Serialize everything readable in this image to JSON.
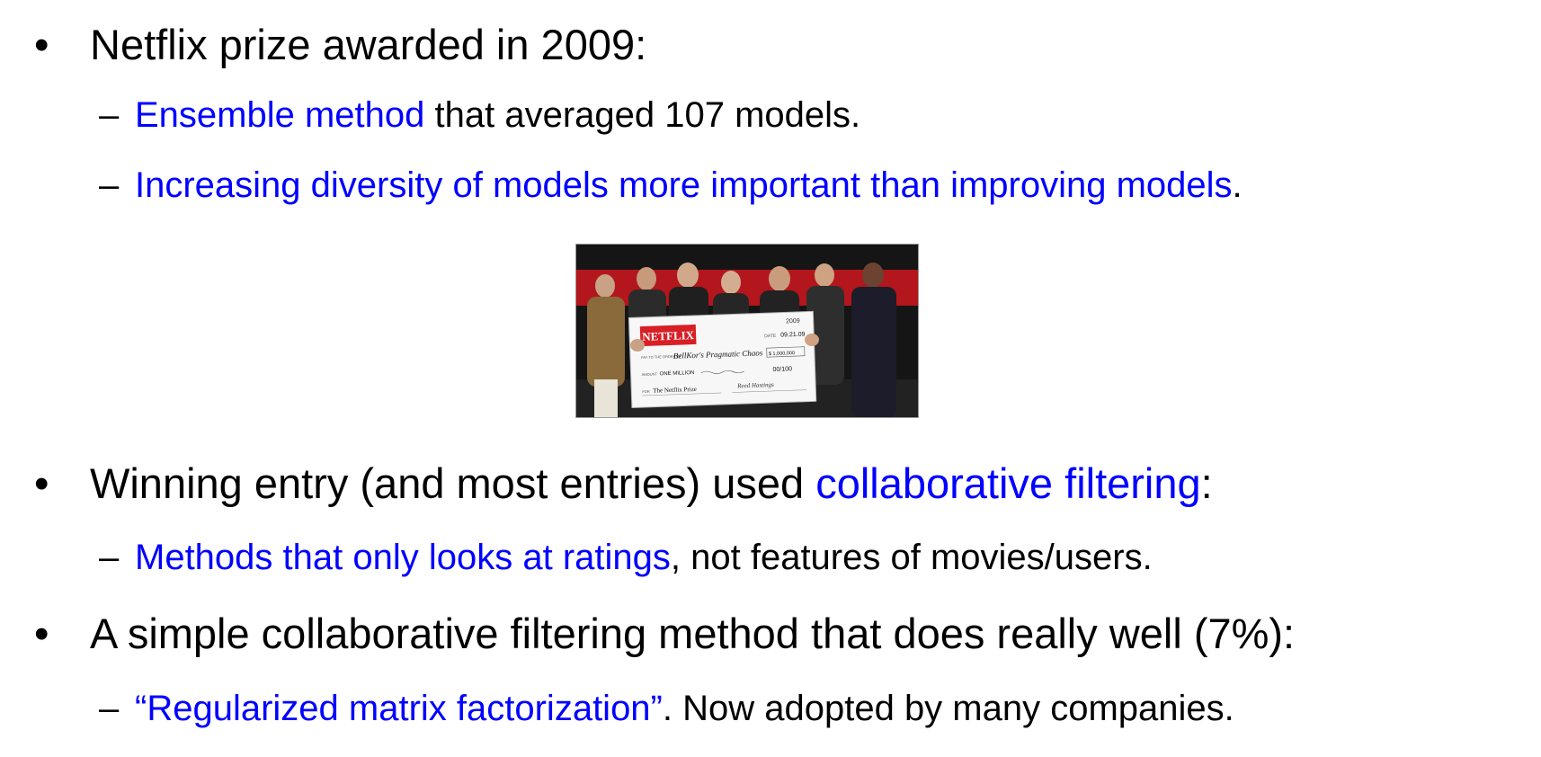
{
  "bullets": [
    {
      "text": "Netflix prize awarded in 2009:",
      "subs": [
        {
          "parts": [
            {
              "t": "Ensemble method",
              "blue": true
            },
            {
              "t": " that averaged 107 models.",
              "blue": false
            }
          ]
        },
        {
          "parts": [
            {
              "t": "Increasing diversity of models more important than improving models",
              "blue": true
            },
            {
              "t": ".",
              "blue": false
            }
          ]
        }
      ]
    },
    {
      "parts": [
        {
          "t": "Winning entry (and most entries) used ",
          "blue": false
        },
        {
          "t": "collaborative filtering",
          "blue": true
        },
        {
          "t": ":",
          "blue": false
        }
      ],
      "subs": [
        {
          "parts": [
            {
              "t": "Methods that only looks at ratings",
              "blue": true
            },
            {
              "t": ", not features of movies/users.",
              "blue": false
            }
          ]
        }
      ]
    },
    {
      "text": "A simple collaborative filtering method that does really well (7%):",
      "subs": [
        {
          "parts": [
            {
              "t": "“Regularized matrix factorization”",
              "blue": true
            },
            {
              "t": ". Now adopted by many companies.",
              "blue": false
            }
          ]
        }
      ]
    }
  ],
  "bullet_char": "•",
  "dash_char": "–",
  "photo": {
    "brand": "NETFLIX",
    "year": "2009",
    "date_label": "DATE",
    "date": "09.21.09",
    "pay_label": "PAY TO THE ORDER OF",
    "payee": "BellKor's Pragmatic Chaos",
    "amount_box": "$ 1,000,000",
    "amount_label": "AMOUNT",
    "amount_words": "ONE MILLION",
    "cents": "00/100",
    "for_label": "FOR",
    "memo": "The Netflix Prize",
    "signature": "Reed Hastings"
  },
  "colors": {
    "highlight": "#0000ff",
    "text": "#000000",
    "netflix_red": "#d81f26"
  }
}
